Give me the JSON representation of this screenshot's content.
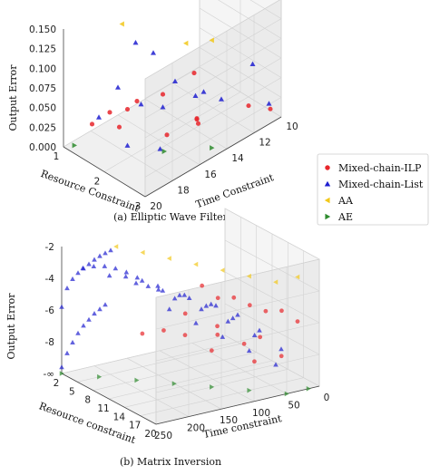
{
  "colors": {
    "ilp": "#e8262b",
    "list": "#1f1fd0",
    "aa": "#f2c81a",
    "ae": "#2e8b2e"
  },
  "legend": {
    "placement": "right",
    "items": [
      {
        "label": "Mixed-chain-ILP",
        "marker": "circle",
        "color": "#e8262b"
      },
      {
        "label": "Mixed-chain-List",
        "marker": "triangle-up",
        "color": "#1f1fd0"
      },
      {
        "label": "AA",
        "marker": "triangle-left",
        "color": "#f2c81a"
      },
      {
        "label": "AE",
        "marker": "triangle-right",
        "color": "#2e8b2e"
      }
    ]
  },
  "chart_data": [
    {
      "type": "scatter",
      "caption": "(a) Elliptic Wave Filter",
      "xlabel": "Resource Constraint",
      "ylabel": "Time Constraint",
      "zlabel": "Output Error",
      "xticks": [
        "1",
        "2",
        "3"
      ],
      "yticks": [
        "20",
        "18",
        "16",
        "14",
        "12",
        "10"
      ],
      "zticks": [
        "0.000",
        "0.025",
        "0.050",
        "0.075",
        "0.100",
        "0.125",
        "0.150"
      ],
      "xlim": [
        1,
        3
      ],
      "ylim": [
        10,
        20
      ],
      "zlim": [
        0,
        0.15
      ],
      "series": [
        {
          "name": "Mixed-chain-ILP",
          "marker": "circle",
          "points": [
            [
              2.8,
              17.8,
              0.05
            ],
            [
              2.6,
              15,
              0.035
            ],
            [
              2.1,
              19.2,
              0.052
            ],
            [
              1.3,
              17.5,
              0.028
            ],
            [
              1.3,
              15.5,
              0.022
            ],
            [
              1.2,
              18.5,
              0.02
            ],
            [
              1.6,
              14.5,
              0.03
            ],
            [
              1.4,
              16.5,
              0.025
            ],
            [
              2.1,
              13.5,
              0.005
            ],
            [
              2.3,
              14,
              0.01
            ],
            [
              2.7,
              11.5,
              0.02
            ],
            [
              2.9,
              10.5,
              0.012
            ],
            [
              1.7,
              12.5,
              0.04
            ]
          ]
        },
        {
          "name": "Mixed-chain-List",
          "marker": "triangle-up",
          "points": [
            [
              1.4,
              17.2,
              0.06
            ],
            [
              1.5,
              16.2,
              0.11
            ],
            [
              1.6,
              15.2,
              0.09
            ],
            [
              1.8,
              14.2,
              0.05
            ],
            [
              2.1,
              13.6,
              0.035
            ],
            [
              2.4,
              12.6,
              0.03
            ],
            [
              2.7,
              11.2,
              0.07
            ],
            [
              2.9,
              10.6,
              0.02
            ],
            [
              1.3,
              18.3,
              0.03
            ],
            [
              1.3,
              15.2,
              0.015
            ],
            [
              1.7,
              14.8,
              0.02
            ],
            [
              2.6,
              14.5,
              0.065
            ],
            [
              2.2,
              16.5,
              0.0
            ],
            [
              1.9,
              18,
              0.01
            ]
          ]
        },
        {
          "name": "AA",
          "marker": "triangle-left",
          "points": [
            [
              1.6,
              17.5,
              0.15
            ],
            [
              2.6,
              15.8,
              0.14
            ],
            [
              2.8,
              14.5,
              0.137
            ]
          ]
        },
        {
          "name": "AE",
          "marker": "triangle-right",
          "points": [
            [
              1.1,
              19.5,
              0.0
            ],
            [
              2.8,
              14.5,
              0.0
            ],
            [
              2.3,
              16.5,
              0.0
            ]
          ]
        }
      ]
    },
    {
      "type": "scatter",
      "caption": "(b) Matrix Inversion",
      "xlabel": "Resource constraint",
      "ylabel": "Time constraint",
      "zlabel": "Output Error",
      "xticks": [
        "2",
        "5",
        "8",
        "11",
        "14",
        "17",
        "20"
      ],
      "yticks": [
        "250",
        "200",
        "150",
        "100",
        "50",
        "0"
      ],
      "zticks": [
        "-∞",
        "-8",
        "-6",
        "-4",
        "-2"
      ],
      "xlim": [
        2,
        20
      ],
      "ylim": [
        0,
        300
      ],
      "zlim": [
        -9,
        -1
      ],
      "series": [
        {
          "name": "Mixed-chain-ILP",
          "marker": "circle",
          "points": [
            [
              8,
              100,
              -4
            ],
            [
              10,
              90,
              -4.5
            ],
            [
              12,
              80,
              -4.2
            ],
            [
              14,
              70,
              -4.4
            ],
            [
              16,
              60,
              -4.5
            ],
            [
              18,
              50,
              -4.2
            ],
            [
              20,
              40,
              -4.6
            ],
            [
              10,
              150,
              -5
            ],
            [
              13,
              120,
              -5.5
            ],
            [
              17,
              80,
              -5.8
            ],
            [
              9,
              180,
              -6
            ],
            [
              12,
              110,
              -6.3
            ],
            [
              15,
              90,
              -6.5
            ],
            [
              19,
              60,
              -6.8
            ],
            [
              7,
              200,
              -6.4
            ],
            [
              11,
              160,
              -6.1
            ],
            [
              14,
              140,
              -6.7
            ],
            [
              18,
              100,
              -7
            ]
          ]
        },
        {
          "name": "Mixed-chain-List",
          "marker": "triangle-up",
          "points": [
            [
              2,
              300,
              -8.6
            ],
            [
              2,
              290,
              -7.8
            ],
            [
              2,
              280,
              -7.2
            ],
            [
              2,
              270,
              -6.7
            ],
            [
              2,
              260,
              -6.3
            ],
            [
              2,
              250,
              -6.0
            ],
            [
              2,
              240,
              -5.7
            ],
            [
              2,
              230,
              -5.5
            ],
            [
              2,
              220,
              -5.3
            ],
            [
              2,
              300,
              -4.8
            ],
            [
              2,
              290,
              -3.7
            ],
            [
              2,
              280,
              -3.2
            ],
            [
              2,
              270,
              -2.9
            ],
            [
              2,
              260,
              -2.7
            ],
            [
              2,
              250,
              -2.5
            ],
            [
              2,
              240,
              -2.3
            ],
            [
              2,
              230,
              -2.15
            ],
            [
              2,
              220,
              -2.05
            ],
            [
              2,
              210,
              -1.95
            ],
            [
              5,
              290,
              -1.9
            ],
            [
              5,
              270,
              -1.95
            ],
            [
              5,
              250,
              -2.1
            ],
            [
              5,
              230,
              -2.4
            ],
            [
              5,
              210,
              -2.8
            ],
            [
              5,
              190,
              -3.3
            ],
            [
              5,
              170,
              -4.0
            ],
            [
              8,
              270,
              -2
            ],
            [
              8,
              240,
              -2.3
            ],
            [
              8,
              210,
              -2.8
            ],
            [
              8,
              180,
              -3.6
            ],
            [
              8,
              150,
              -4.4
            ],
            [
              11,
              250,
              -2.1
            ],
            [
              11,
              210,
              -2.6
            ],
            [
              11,
              170,
              -3.5
            ],
            [
              11,
              130,
              -4.7
            ],
            [
              14,
              230,
              -2.2
            ],
            [
              14,
              190,
              -2.8
            ],
            [
              14,
              150,
              -3.8
            ],
            [
              14,
              110,
              -5.1
            ],
            [
              17,
              210,
              -2.3
            ],
            [
              17,
              170,
              -3
            ],
            [
              17,
              130,
              -4.2
            ],
            [
              17,
              90,
              -5.6
            ],
            [
              20,
              190,
              -2.4
            ],
            [
              20,
              150,
              -3.3
            ],
            [
              20,
              110,
              -4.6
            ],
            [
              20,
              70,
              -6.1
            ],
            [
              8,
              160,
              -5
            ],
            [
              11,
              140,
              -5.5
            ],
            [
              14,
              120,
              -6
            ],
            [
              17,
              100,
              -6.5
            ],
            [
              20,
              80,
              -7
            ]
          ]
        },
        {
          "name": "AA",
          "marker": "triangle-left",
          "points": [
            [
              2,
              200,
              -1.8
            ],
            [
              5,
              180,
              -1.8
            ],
            [
              8,
              160,
              -1.8
            ],
            [
              11,
              140,
              -1.8
            ],
            [
              14,
              120,
              -1.8
            ],
            [
              17,
              100,
              -1.8
            ],
            [
              20,
              80,
              -1.8
            ],
            [
              20,
              40,
              -1.8
            ]
          ]
        },
        {
          "name": "AE",
          "marker": "triangle-right",
          "points": [
            [
              2,
              300,
              -9
            ],
            [
              5,
              260,
              -9
            ],
            [
              8,
              220,
              -9
            ],
            [
              11,
              180,
              -9
            ],
            [
              14,
              140,
              -9
            ],
            [
              17,
              100,
              -9
            ],
            [
              20,
              60,
              -9
            ],
            [
              20,
              20,
              -9
            ]
          ]
        }
      ]
    }
  ]
}
